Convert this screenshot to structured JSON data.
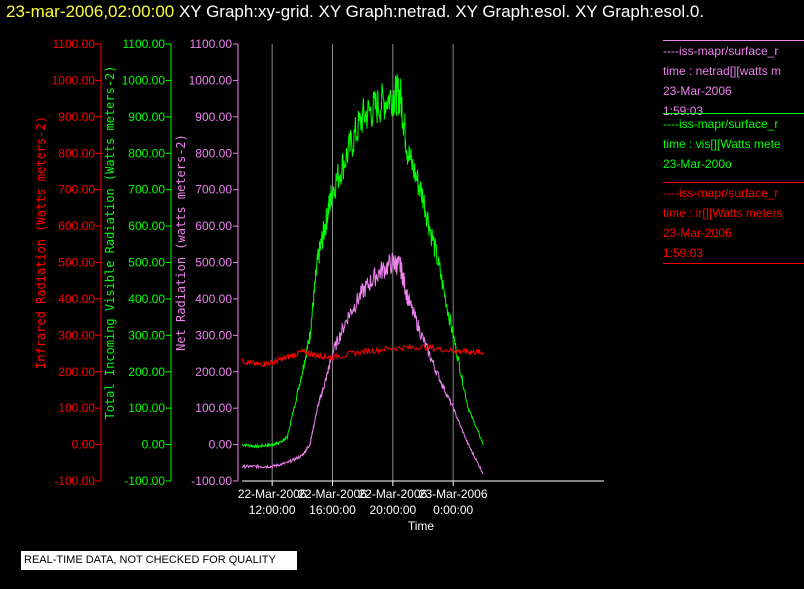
{
  "header": {
    "date": "23-mar-2006,02:00:00",
    "graphs": [
      "XY Graph:xy-grid.",
      "XY Graph:netrad.",
      "XY Graph:esol.",
      "XY Graph:esol.0."
    ]
  },
  "legends": [
    {
      "color": "#ee82ee",
      "lines": [
        "----iss-mapr/surface_r",
        "time : netrad[][watts m",
        "23-Mar-2006",
        "1:59:03"
      ]
    },
    {
      "color": "#00ff00",
      "lines": [
        "----iss-mapr/surface_r",
        "time : vis[][Watts mete",
        "23-Mar-200o"
      ]
    },
    {
      "color": "#ff0000",
      "lines": [
        "----iss-mapr/surface_r",
        "time : ir[][Watts meters",
        "23-Mar-2006",
        "1:59:03"
      ]
    }
  ],
  "badge": "REAL-TIME DATA, NOT CHECKED FOR QUALITY",
  "chart_data": {
    "type": "line",
    "xlabel": "Time",
    "xlim": [
      10,
      34
    ],
    "x_ticks": [
      {
        "value": 12,
        "label": [
          "22-Mar-2006",
          "12:00:00"
        ]
      },
      {
        "value": 16,
        "label": [
          "22-Mar-2006",
          "16:00:00"
        ]
      },
      {
        "value": 20,
        "label": [
          "22-Mar-2006",
          "20:00:00"
        ]
      },
      {
        "value": 24,
        "label": [
          "23-Mar-2006",
          "0:00:00"
        ]
      }
    ],
    "grid": "vertical",
    "y_axes": [
      {
        "id": "ir",
        "label": "Infrared Radiation (Watts meters-2)",
        "color": "#ff0000",
        "ylim": [
          -100,
          1100
        ],
        "ticks": [
          "-100.00",
          "0.00",
          "100.00",
          "200.00",
          "300.00",
          "400.00",
          "500.00",
          "600.00",
          "700.00",
          "800.00",
          "900.00",
          "1000.00",
          "1100.00"
        ]
      },
      {
        "id": "vis",
        "label": "Total Incoming Visible Radiation (Watts meters-2)",
        "color": "#00ff00",
        "ylim": [
          -100,
          1100
        ],
        "ticks": [
          "-100.00",
          "0.00",
          "100.00",
          "200.00",
          "300.00",
          "400.00",
          "500.00",
          "600.00",
          "700.00",
          "800.00",
          "900.00",
          "1000.00",
          "1100.00"
        ]
      },
      {
        "id": "net",
        "label": "Net Radiation (watts meters-2)",
        "color": "#ee82ee",
        "ylim": [
          -100,
          1100
        ],
        "ticks": [
          "-100.00",
          "0.00",
          "100.00",
          "200.00",
          "300.00",
          "400.00",
          "500.00",
          "600.00",
          "700.00",
          "800.00",
          "900.00",
          "1000.00",
          "1100.00"
        ]
      }
    ],
    "series": [
      {
        "axis": "vis",
        "color": "#00ff00",
        "x": [
          10,
          11,
          12,
          12.5,
          13,
          14,
          14.5,
          15,
          15.5,
          16,
          17,
          18,
          19,
          20,
          20.5,
          21,
          22,
          23,
          24,
          25,
          26
        ],
        "y": [
          0,
          -5,
          0,
          5,
          20,
          200,
          300,
          500,
          600,
          700,
          800,
          900,
          930,
          960,
          960,
          800,
          680,
          500,
          300,
          100,
          0
        ]
      },
      {
        "axis": "net",
        "color": "#ee82ee",
        "x": [
          10,
          11,
          12,
          13,
          14,
          14.5,
          15,
          15.5,
          16,
          17,
          18,
          19,
          20,
          20.5,
          21,
          22,
          23,
          24,
          25,
          26
        ],
        "y": [
          -60,
          -60,
          -60,
          -50,
          -30,
          0,
          100,
          170,
          250,
          350,
          420,
          470,
          500,
          490,
          400,
          290,
          190,
          100,
          0,
          -80
        ]
      },
      {
        "axis": "ir",
        "color": "#ff0000",
        "x": [
          10,
          11,
          12,
          13,
          14,
          15,
          16,
          18,
          20,
          22,
          24,
          25,
          26
        ],
        "y": [
          230,
          220,
          225,
          240,
          255,
          245,
          240,
          255,
          265,
          268,
          258,
          255,
          253
        ]
      }
    ]
  }
}
